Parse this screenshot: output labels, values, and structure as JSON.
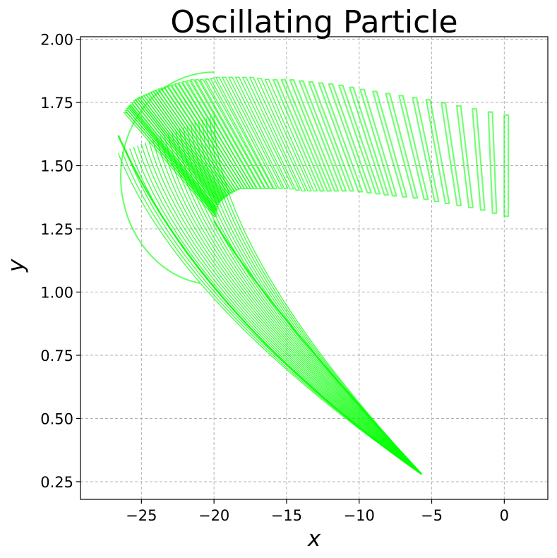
{
  "chart_data": {
    "type": "line",
    "title": "Oscillating Particle",
    "xlabel": "x",
    "ylabel": "y",
    "xlim": [
      -29.2,
      3.0
    ],
    "ylim": [
      0.18,
      2.01
    ],
    "xticks": [
      -25,
      -20,
      -15,
      -10,
      -5,
      0
    ],
    "xtick_labels": [
      "−25",
      "−20",
      "−15",
      "−10",
      "−5",
      "0"
    ],
    "yticks": [
      0.25,
      0.5,
      0.75,
      1.0,
      1.25,
      1.5,
      1.75,
      2.0
    ],
    "ytick_labels": [
      "0.25",
      "0.50",
      "0.75",
      "1.00",
      "1.25",
      "1.50",
      "1.75",
      "2.00"
    ],
    "grid": true,
    "line_color": "#00ff00",
    "series": [
      {
        "description_free": true,
        "start": [
          0.0,
          1.3
        ],
        "end": [
          -5.7,
          0.28
        ],
        "turn_point": [
          -26.6,
          1.65
        ],
        "knee_point": [
          -19.9,
          1.2
        ],
        "segments": 44,
        "segment_height_start": 0.4,
        "segment_height_end": 0.04,
        "segment_tip_x_first": [
          0.0,
          1.7
        ],
        "segment_tip_x_steps": [
          [
            0.0,
            1.3,
            0.0,
            1.7
          ],
          [
            -2.0,
            1.33,
            -2.7,
            1.73
          ],
          [
            -4.0,
            1.35,
            -5.3,
            1.76
          ],
          [
            -5.8,
            1.37,
            -7.6,
            1.78
          ],
          [
            -7.6,
            1.38,
            -9.8,
            1.8
          ],
          [
            -9.0,
            1.39,
            -11.6,
            1.82
          ],
          [
            -10.5,
            1.4,
            -13.3,
            1.83
          ],
          [
            -11.8,
            1.4,
            -14.9,
            1.84
          ],
          [
            -13.0,
            1.4,
            -16.3,
            1.84
          ],
          [
            -14.0,
            1.4,
            -17.6,
            1.85
          ],
          [
            -15.0,
            1.41,
            -18.8,
            1.85
          ],
          [
            -15.9,
            1.41,
            -19.9,
            1.85
          ],
          [
            -16.6,
            1.41,
            -20.8,
            1.84
          ],
          [
            -17.3,
            1.41,
            -21.6,
            1.84
          ],
          [
            -17.8,
            1.41,
            -22.3,
            1.83
          ],
          [
            -18.3,
            1.41,
            -22.9,
            1.82
          ],
          [
            -18.7,
            1.4,
            -23.5,
            1.81
          ],
          [
            -19.0,
            1.39,
            -24.0,
            1.8
          ],
          [
            -19.3,
            1.38,
            -24.4,
            1.79
          ],
          [
            -19.5,
            1.37,
            -24.8,
            1.78
          ],
          [
            -19.7,
            1.36,
            -25.2,
            1.77
          ],
          [
            -19.85,
            1.35,
            -25.5,
            1.76
          ],
          [
            -19.95,
            1.33,
            -25.8,
            1.74
          ],
          [
            -20.0,
            1.32,
            -26.0,
            1.73
          ],
          [
            -20.0,
            1.3,
            -26.2,
            1.71
          ]
        ]
      }
    ]
  }
}
